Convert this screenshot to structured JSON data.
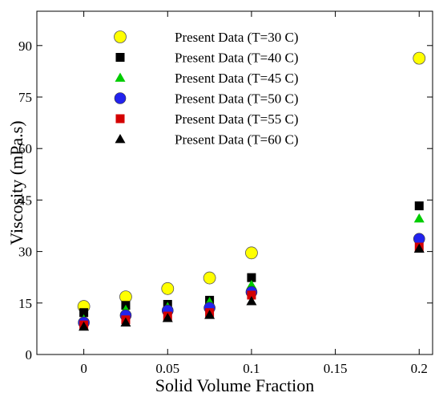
{
  "chart_data": {
    "type": "scatter",
    "title": "",
    "xlabel": "Solid Volume Fraction",
    "ylabel": "Viscosity (mPa.s)",
    "xlim": [
      -0.028,
      0.208
    ],
    "ylim": [
      0,
      100
    ],
    "xticks": [
      "0",
      "0.05",
      "0.1",
      "0.15",
      "0.2"
    ],
    "yticks": [
      "0",
      "15",
      "30",
      "45",
      "60",
      "75",
      "90"
    ],
    "grid": false,
    "legend_position": "top-center",
    "series": [
      {
        "name": "Present Data (T=30 C)",
        "marker": "circle-large",
        "color": "#ffff00",
        "x": [
          0,
          0.025,
          0.05,
          0.075,
          0.1,
          0.2
        ],
        "y": [
          14.0,
          16.8,
          19.2,
          22.3,
          29.6,
          86.3
        ]
      },
      {
        "name": "Present Data (T=40 C)",
        "marker": "square",
        "color": "#000000",
        "x": [
          0,
          0.025,
          0.05,
          0.075,
          0.1,
          0.2
        ],
        "y": [
          12.2,
          14.3,
          14.6,
          15.8,
          22.4,
          43.3
        ]
      },
      {
        "name": "Present Data (T=45 C)",
        "marker": "triangle",
        "color": "#00cc00",
        "x": [
          0,
          0.025,
          0.05,
          0.075,
          0.1,
          0.2
        ],
        "y": [
          10.2,
          13.0,
          13.8,
          15.3,
          20.2,
          39.6
        ]
      },
      {
        "name": "Present Data (T=50 C)",
        "marker": "circle",
        "color": "#2222ee",
        "x": [
          0,
          0.025,
          0.05,
          0.075,
          0.1,
          0.2
        ],
        "y": [
          9.3,
          11.4,
          12.8,
          13.6,
          18.2,
          33.7
        ]
      },
      {
        "name": "Present Data (T=55 C)",
        "marker": "square",
        "color": "#d40000",
        "x": [
          0,
          0.025,
          0.05,
          0.075,
          0.1,
          0.2
        ],
        "y": [
          8.6,
          10.1,
          11.2,
          12.2,
          17.3,
          31.3
        ]
      },
      {
        "name": "Present Data (T=60 C)",
        "marker": "triangle",
        "color": "#000000",
        "x": [
          0,
          0.025,
          0.05,
          0.075,
          0.1,
          0.2
        ],
        "y": [
          8.1,
          9.3,
          10.6,
          11.5,
          15.5,
          30.8
        ]
      }
    ]
  }
}
